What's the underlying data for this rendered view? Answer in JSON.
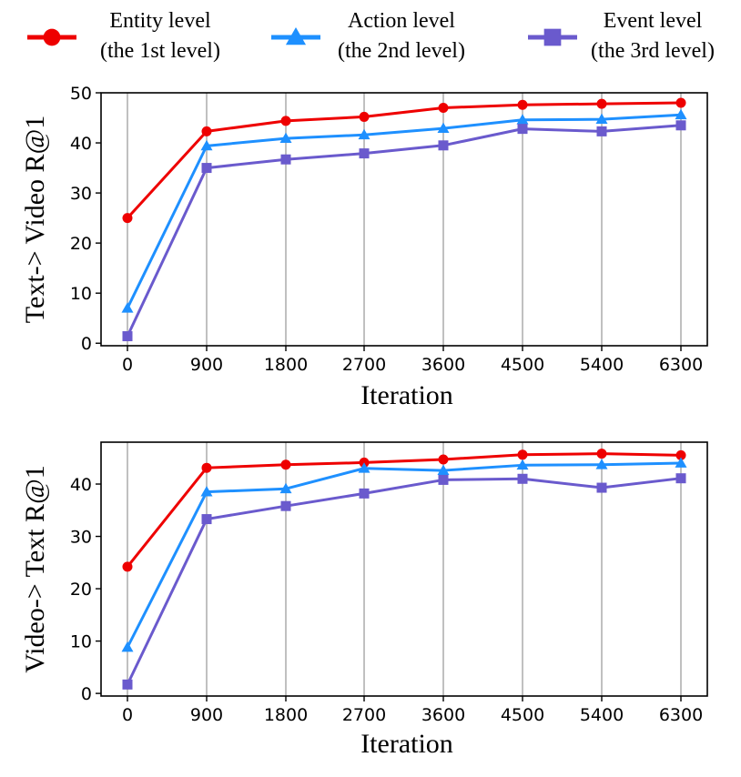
{
  "legend": [
    {
      "line1": "Entity level",
      "line2": "(the 1st level)",
      "color": "#ee0000",
      "marker": "circle"
    },
    {
      "line1": "Action level",
      "line2": "(the 2nd level)",
      "color": "#1e90ff",
      "marker": "triangle"
    },
    {
      "line1": "Event level",
      "line2": "(the 3rd level)",
      "color": "#6a5acd",
      "marker": "square"
    }
  ],
  "chart_data": [
    {
      "type": "line",
      "xlabel": "Iteration",
      "ylabel": "Text-> Video  R@1",
      "categories": [
        "0",
        "900",
        "1800",
        "2700",
        "3600",
        "4500",
        "5400",
        "6300"
      ],
      "yticks": [
        0,
        10,
        20,
        30,
        40,
        50
      ],
      "ylim": [
        -0.5,
        50
      ],
      "grid": "x",
      "series": [
        {
          "name": "Entity level (the 1st level)",
          "color": "#ee0000",
          "marker": "circle",
          "values": [
            25.0,
            42.3,
            44.4,
            45.2,
            47.0,
            47.6,
            47.8,
            48.0
          ]
        },
        {
          "name": "Action level (the 2nd level)",
          "color": "#1e90ff",
          "marker": "triangle",
          "values": [
            7.0,
            39.4,
            40.9,
            41.6,
            42.9,
            44.6,
            44.7,
            45.6
          ]
        },
        {
          "name": "Event level (the 3rd level)",
          "color": "#6a5acd",
          "marker": "square",
          "values": [
            1.4,
            35.0,
            36.7,
            37.9,
            39.5,
            42.8,
            42.3,
            43.5
          ]
        }
      ]
    },
    {
      "type": "line",
      "xlabel": "Iteration",
      "ylabel": "Video-> Text  R@1",
      "categories": [
        "0",
        "900",
        "1800",
        "2700",
        "3600",
        "4500",
        "5400",
        "6300"
      ],
      "yticks": [
        0,
        10,
        20,
        30,
        40
      ],
      "ylim": [
        -0.5,
        48
      ],
      "grid": "x",
      "series": [
        {
          "name": "Entity level (the 1st level)",
          "color": "#ee0000",
          "marker": "circle",
          "values": [
            24.2,
            43.1,
            43.7,
            44.1,
            44.7,
            45.6,
            45.8,
            45.5
          ]
        },
        {
          "name": "Action level (the 2nd level)",
          "color": "#1e90ff",
          "marker": "triangle",
          "values": [
            8.8,
            38.5,
            39.1,
            43.0,
            42.6,
            43.6,
            43.7,
            44.0
          ]
        },
        {
          "name": "Event level (the 3rd level)",
          "color": "#6a5acd",
          "marker": "square",
          "values": [
            1.7,
            33.3,
            35.8,
            38.2,
            40.8,
            41.0,
            39.3,
            41.1
          ]
        }
      ]
    }
  ]
}
